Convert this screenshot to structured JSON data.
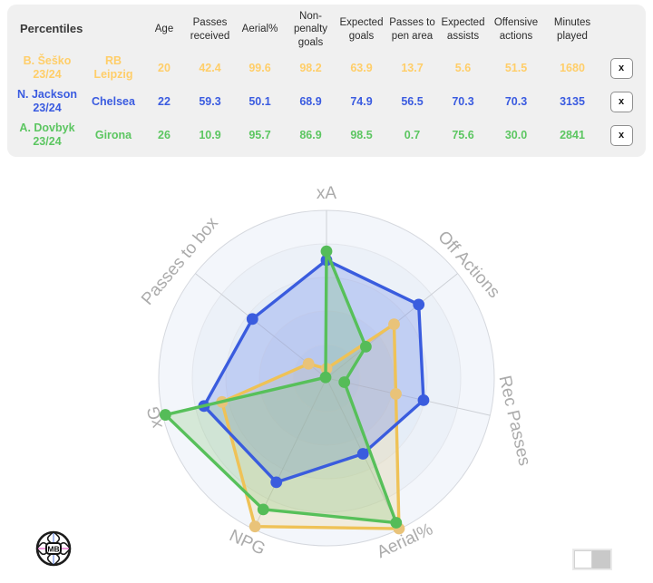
{
  "table": {
    "header": {
      "percentiles_label": "Percentiles",
      "columns": [
        "Age",
        "Passes received",
        "Aerial%",
        "Non-penalty goals",
        "Expected goals",
        "Passes to pen area",
        "Expected assists",
        "Offensive actions",
        "Minutes played"
      ]
    },
    "rows": [
      {
        "name": "B. Šeško",
        "season": "23/24",
        "team": "RB Leipzig",
        "color": "#ffce69",
        "values": [
          "20",
          "42.4",
          "99.6",
          "98.2",
          "63.9",
          "13.7",
          "5.6",
          "51.5",
          "1680"
        ],
        "remove_label": "x"
      },
      {
        "name": "N. Jackson",
        "season": "23/24",
        "team": "Chelsea",
        "color": "#3a5be0",
        "values": [
          "22",
          "59.3",
          "50.1",
          "68.9",
          "74.9",
          "56.5",
          "70.3",
          "70.3",
          "3135"
        ],
        "remove_label": "x"
      },
      {
        "name": "A. Dovbyk",
        "season": "23/24",
        "team": "Girona",
        "color": "#5cc661",
        "values": [
          "26",
          "10.9",
          "95.7",
          "86.9",
          "98.5",
          "0.7",
          "75.6",
          "30.0",
          "2841"
        ],
        "remove_label": "x"
      }
    ]
  },
  "chart_data": {
    "type": "radar",
    "axes": [
      "xA",
      "Off Actions",
      "Rec Passes",
      "Aerial%",
      "NPG",
      "xG",
      "Passes to box"
    ],
    "scale_min": 0,
    "scale_max": 100,
    "grid_rings": 5,
    "legend_position": "none",
    "series": [
      {
        "name": "B. Šeško 23/24",
        "color": "#efc256",
        "dot_color": "#e9c379",
        "fill": "rgba(235,198,105,0.20)",
        "values": [
          5.6,
          51.5,
          42.4,
          99.6,
          98.2,
          63.9,
          13.7
        ]
      },
      {
        "name": "N. Jackson 23/24",
        "color": "#3a5cde",
        "dot_color": "#3a5cde",
        "fill": "rgba(100,130,235,0.28)",
        "values": [
          70.3,
          70.3,
          59.3,
          50.1,
          68.9,
          74.9,
          56.5
        ]
      },
      {
        "name": "A. Dovbyk 23/24",
        "color": "#57c05a",
        "dot_color": "#55bc58",
        "fill": "rgba(124,191,106,0.25)",
        "values": [
          75.6,
          30.0,
          10.9,
          95.7,
          86.9,
          98.5,
          0.7
        ]
      }
    ]
  },
  "footer": {
    "logo_text": "MB",
    "toggle_state": "left"
  }
}
